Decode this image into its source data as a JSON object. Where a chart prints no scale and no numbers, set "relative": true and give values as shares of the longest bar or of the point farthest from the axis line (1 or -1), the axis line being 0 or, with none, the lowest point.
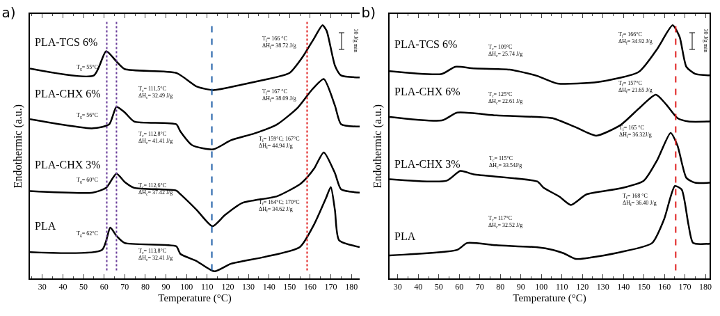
{
  "chart_data": [
    {
      "type": "line",
      "title": "a)",
      "xlabel": "Temperature (°C)",
      "ylabel": "Endothermic (a.u.)",
      "relative": true,
      "tick_labels": "x",
      "xlim": [
        24,
        184
      ],
      "xticks": [
        30,
        40,
        50,
        60,
        70,
        80,
        90,
        100,
        110,
        120,
        130,
        140,
        150,
        160,
        170,
        180
      ],
      "series": [
        {
          "name": "PLA-TCS 6%",
          "color": "#000000",
          "x": [
            24,
            55,
            61,
            66,
            70,
            95,
            105,
            113,
            127,
            138,
            150,
            156.5,
            162,
            166,
            168,
            172,
            175,
            184
          ],
          "values": [
            0.829,
            0.802,
            0.898,
            0.857,
            0.827,
            0.812,
            0.758,
            0.744,
            0.766,
            0.785,
            0.812,
            0.877,
            0.95,
            1,
            0.978,
            0.841,
            0.802,
            0.794
          ]
        },
        {
          "name": "PLA-CHX 6%",
          "color": "#000000",
          "x": [
            24,
            54.5,
            62.5,
            66,
            70,
            74.6,
            95,
            97,
            102.8,
            113,
            121.6,
            133,
            144,
            154,
            160.9,
            166.6,
            172,
            175,
            184
          ],
          "values": [
            0.629,
            0.593,
            0.609,
            0.678,
            0.656,
            0.62,
            0.609,
            0.581,
            0.526,
            0.51,
            0.546,
            0.573,
            0.609,
            0.675,
            0.746,
            0.788,
            0.683,
            0.609,
            0.6
          ]
        },
        {
          "name": "PLA-CHX 3%",
          "color": "#000000",
          "x": [
            24,
            54.5,
            61,
            66,
            70,
            74.6,
            95,
            97,
            105,
            112.6,
            118.6,
            127,
            144,
            155,
            158.5,
            162,
            166.6,
            172,
            175,
            184
          ],
          "values": [
            0.345,
            0.339,
            0.358,
            0.414,
            0.381,
            0.358,
            0.347,
            0.333,
            0.27,
            0.206,
            0.25,
            0.298,
            0.325,
            0.372,
            0.399,
            0.435,
            0.498,
            0.416,
            0.352,
            0.339
          ]
        },
        {
          "name": "PLA",
          "color": "#000000",
          "x": [
            24,
            59,
            63,
            66,
            70,
            95,
            97,
            105,
            113.5,
            121.6,
            138,
            155,
            162,
            167.6,
            170,
            172,
            174,
            184
          ],
          "values": [
            0.104,
            0.113,
            0.201,
            0.168,
            0.14,
            0.127,
            0.097,
            0.068,
            0.028,
            0.058,
            0.085,
            0.124,
            0.215,
            0.316,
            0.361,
            0.27,
            0.151,
            0.124
          ]
        }
      ],
      "ref_lines": [
        {
          "axis": "x",
          "value": 61.3,
          "color": "#6a3d9a",
          "line_style": "dotted"
        },
        {
          "axis": "x",
          "value": 66,
          "color": "#6a3d9a",
          "line_style": "dotted"
        },
        {
          "axis": "x",
          "value": 112.3,
          "color": "#1f5fa8",
          "line_style": "dashed"
        },
        {
          "axis": "x",
          "value": 158.5,
          "color": "#e02020",
          "line_style": "dotted"
        }
      ],
      "annotations": [
        "T$_{g}$= 55°C",
        "T$_{c}$= 111,5°C\nΔH$_{c}$= 32.49 J/g",
        "T$_{f}$= 166 °C\nΔH$_{f}$= 38.72 J/g",
        "T$_{g}$= 56°C",
        "T$_{c}$= 112,8°C\nΔH$_{c}$= 41.41 J/g",
        "T$_{f}$= 167 °C\nΔH$_{f}$= 38.09 J/g",
        "T$_{g}$= 60°C",
        "T$_{c}$= 112,6°C\nΔH$_{c}$= 37.42 J/g",
        "T$_{f}$= 159°C; 167°C\nΔH$_{f}$= 44.94 J/g",
        "T$_{g}$= 62°C",
        "T$_{c}$= 113,8°C\nΔH$_{c}$= 32.41 J/g",
        "T$_{f}$= 164°C; 170°C\nΔH$_{f}$= 34.62 J/g",
        "30 J/g min"
      ]
    },
    {
      "type": "line",
      "title": "b)",
      "xlabel": "Temperature (°C)",
      "ylabel": "Endothermic (a.u.)",
      "relative": true,
      "tick_labels": "x",
      "xlim": [
        26,
        182
      ],
      "xticks": [
        30,
        40,
        50,
        60,
        70,
        80,
        90,
        100,
        110,
        120,
        130,
        140,
        150,
        160,
        170,
        180
      ],
      "series": [
        {
          "name": "PLA-TCS 6%",
          "color": "#000000",
          "x": [
            26,
            51.5,
            58,
            67,
            84.6,
            98,
            107.8,
            127.7,
            147.5,
            156.5,
            164,
            167.4,
            170.7,
            175,
            182
          ],
          "values": [
            0.819,
            0.808,
            0.836,
            0.83,
            0.825,
            0.8,
            0.77,
            0.776,
            0.816,
            0.907,
            1,
            0.954,
            0.836,
            0.808,
            0.802
          ]
        },
        {
          "name": "PLA-CHX 6%",
          "color": "#000000",
          "x": [
            26,
            51.5,
            59,
            78,
            98,
            105.5,
            116.8,
            126.7,
            138.6,
            147.5,
            155.8,
            160.8,
            166.4,
            171.7,
            182
          ],
          "values": [
            0.638,
            0.624,
            0.655,
            0.644,
            0.638,
            0.633,
            0.597,
            0.564,
            0.606,
            0.671,
            0.726,
            0.688,
            0.633,
            0.62,
            0.62
          ]
        },
        {
          "name": "PLA-CHX 3%",
          "color": "#000000",
          "x": [
            26,
            53.8,
            60.5,
            67,
            98,
            101,
            108.8,
            114.4,
            122,
            138.6,
            149.9,
            156.5,
            163,
            166.4,
            170.7,
            175,
            182
          ],
          "values": [
            0.392,
            0.386,
            0.425,
            0.411,
            0.383,
            0.359,
            0.323,
            0.29,
            0.332,
            0.356,
            0.386,
            0.468,
            0.575,
            0.524,
            0.397,
            0.378,
            0.378
          ]
        },
        {
          "name": "PLA",
          "color": "#000000",
          "x": [
            26,
            59,
            63.8,
            78,
            98,
            105.5,
            111,
            116.8,
            138.6,
            154,
            159.8,
            165.1,
            168.4,
            171.7,
            174,
            182
          ],
          "values": [
            0.091,
            0.113,
            0.14,
            0.131,
            0.123,
            0.113,
            0.099,
            0.077,
            0.104,
            0.14,
            0.233,
            0.365,
            0.351,
            0.213,
            0.14,
            0.137
          ]
        }
      ],
      "ref_lines": [
        {
          "axis": "x",
          "value": 165.5,
          "color": "#e02020",
          "line_style": "dashed"
        }
      ],
      "annotations": [
        "T$_{c}$= 109°C\nΔH$_{c}$= 25.74 J/g",
        "T$_{f}$= 166°C\nΔH$_{f}$= 34.92 J/g",
        "T$_{c}$= 125°C\nΔH$_{c}$= 22.61 J/g",
        "T$_{f}$= 157°C\nΔH$_{f}$= 21.65 J/g",
        "T$_{c}$= 115°C\nΔH$_{c}$= 33.54J/g",
        "T$_{f}$= 165 °C\nΔH$_{f}$= 36.32J/g",
        "T$_{c}$= 117°C\nΔH$_{c}$= 32.52 J/g",
        "T$_{f}$= 168 °C\nΔH$_{f}$= 36.40 J/g",
        "30 J/g min"
      ]
    }
  ]
}
